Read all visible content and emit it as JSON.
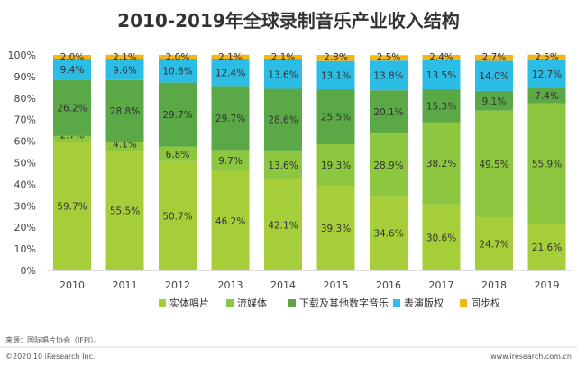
{
  "chart_data": {
    "type": "bar",
    "stacked": true,
    "percent_stacked": true,
    "title": "2010-2019年全球录制音乐产业收入结构",
    "categories": [
      "2010",
      "2011",
      "2012",
      "2013",
      "2014",
      "2015",
      "2016",
      "2017",
      "2018",
      "2019"
    ],
    "ylim": [
      0,
      100
    ],
    "y_ticks": [
      "0%",
      "10%",
      "20%",
      "30%",
      "40%",
      "50%",
      "60%",
      "70%",
      "80%",
      "90%",
      "100%"
    ],
    "grid": false,
    "legend_position": "bottom",
    "series": [
      {
        "name": "实体唱片",
        "color": "#a6ce39",
        "values": [
          59.7,
          55.5,
          50.7,
          46.2,
          42.1,
          39.3,
          34.6,
          30.6,
          24.7,
          21.6
        ],
        "labels": [
          "59.7%",
          "55.5%",
          "50.7%",
          "46.2%",
          "42.1%",
          "39.3%",
          "34.6%",
          "30.6%",
          "24.7%",
          "21.6%"
        ]
      },
      {
        "name": "流媒体",
        "color": "#8dc63f",
        "values": [
          2.7,
          4.1,
          6.8,
          9.7,
          13.6,
          19.3,
          28.9,
          38.2,
          49.5,
          55.9
        ],
        "labels": [
          "2.7%",
          "4.1%",
          "6.8%",
          "9.7%",
          "13.6%",
          "19.3%",
          "28.9%",
          "38.2%",
          "49.5%",
          "55.9%"
        ]
      },
      {
        "name": "下载及其他数字音乐",
        "color": "#5aa846",
        "values": [
          26.2,
          28.8,
          29.7,
          29.7,
          28.6,
          25.5,
          20.1,
          15.3,
          9.1,
          7.4
        ],
        "labels": [
          "26.2%",
          "28.8%",
          "29.7%",
          "29.7%",
          "28.6%",
          "25.5%",
          "20.1%",
          "15.3%",
          "9.1%",
          "7.4%"
        ]
      },
      {
        "name": "表演版权",
        "color": "#2cbde6",
        "values": [
          9.4,
          9.6,
          10.8,
          12.4,
          13.6,
          13.1,
          13.8,
          13.5,
          14.0,
          12.7
        ],
        "labels": [
          "9.4%",
          "9.6%",
          "10.8%",
          "12.4%",
          "13.6%",
          "13.1%",
          "13.8%",
          "13.5%",
          "14.0%",
          "12.7%"
        ]
      },
      {
        "name": "同步权",
        "color": "#f7b515",
        "values": [
          2.0,
          2.1,
          2.0,
          2.1,
          2.1,
          2.8,
          2.5,
          2.4,
          2.7,
          2.5
        ],
        "labels": [
          "2.0%",
          "2.1%",
          "2.0%",
          "2.1%",
          "2.1%",
          "2.8%",
          "2.5%",
          "2.4%",
          "2.7%",
          "2.5%"
        ]
      }
    ]
  },
  "footer": {
    "source": "来源：国际唱片协会（IFPI）。",
    "copyright": "©2020.10 iResearch Inc.",
    "website": "www.iresearch.com.cn"
  }
}
